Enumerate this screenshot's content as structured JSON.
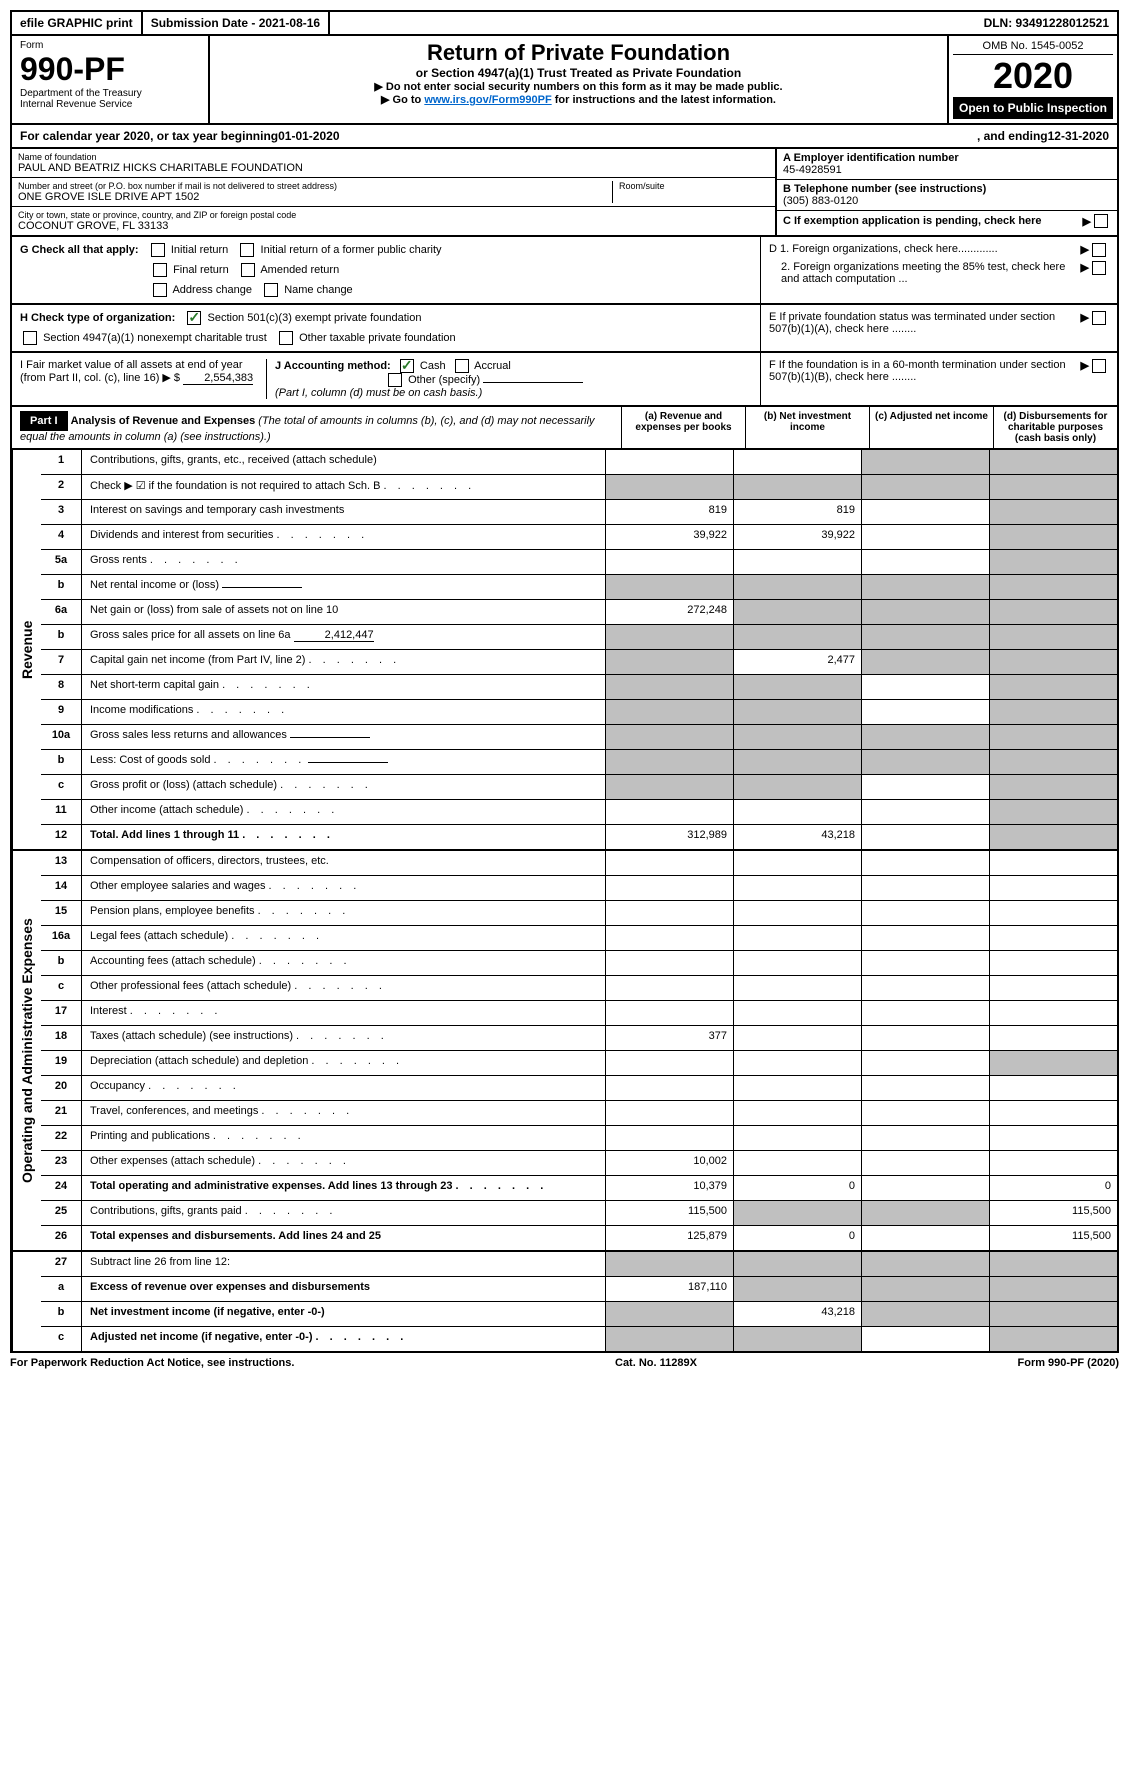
{
  "topbar": {
    "efile": "efile GRAPHIC print",
    "submission": "Submission Date - 2021-08-16",
    "dln": "DLN: 93491228012521"
  },
  "header": {
    "form_label": "Form",
    "form_number": "990-PF",
    "dept": "Department of the Treasury",
    "irs": "Internal Revenue Service",
    "title": "Return of Private Foundation",
    "subtitle": "or Section 4947(a)(1) Trust Treated as Private Foundation",
    "note1": "▶ Do not enter social security numbers on this form as it may be made public.",
    "note2_pre": "▶ Go to ",
    "note2_link": "www.irs.gov/Form990PF",
    "note2_post": " for instructions and the latest information.",
    "omb": "OMB No. 1545-0052",
    "year": "2020",
    "open": "Open to Public Inspection"
  },
  "calendar": {
    "pre": "For calendar year 2020, or tax year beginning ",
    "begin": "01-01-2020",
    "mid": ", and ending ",
    "end": "12-31-2020"
  },
  "entity": {
    "name_label": "Name of foundation",
    "name": "PAUL AND BEATRIZ HICKS CHARITABLE FOUNDATION",
    "addr_label": "Number and street (or P.O. box number if mail is not delivered to street address)",
    "addr": "ONE GROVE ISLE DRIVE APT 1502",
    "room_label": "Room/suite",
    "city_label": "City or town, state or province, country, and ZIP or foreign postal code",
    "city": "COCONUT GROVE, FL  33133",
    "ein_label": "A Employer identification number",
    "ein": "45-4928591",
    "phone_label": "B Telephone number (see instructions)",
    "phone": "(305) 883-0120",
    "c_label": "C If exemption application is pending, check here",
    "d1": "D 1. Foreign organizations, check here.............",
    "d2": "2. Foreign organizations meeting the 85% test, check here and attach computation ...",
    "e": "E  If private foundation status was terminated under section 507(b)(1)(A), check here ........",
    "f": "F  If the foundation is in a 60-month termination under section 507(b)(1)(B), check here ........"
  },
  "checkG": {
    "label": "G Check all that apply:",
    "initial": "Initial return",
    "initial_former": "Initial return of a former public charity",
    "final": "Final return",
    "amended": "Amended return",
    "address": "Address change",
    "name_change": "Name change"
  },
  "checkH": {
    "label": "H Check type of organization:",
    "s501": "Section 501(c)(3) exempt private foundation",
    "s4947": "Section 4947(a)(1) nonexempt charitable trust",
    "other_tax": "Other taxable private foundation"
  },
  "sectionI": {
    "label": "I Fair market value of all assets at end of year (from Part II, col. (c), line 16) ▶ $",
    "value": "2,554,383"
  },
  "sectionJ": {
    "label": "J Accounting method:",
    "cash": "Cash",
    "accrual": "Accrual",
    "other": "Other (specify)",
    "note": "(Part I, column (d) must be on cash basis.)"
  },
  "part1": {
    "header": "Part I",
    "title": "Analysis of Revenue and Expenses",
    "title_note": "(The total of amounts in columns (b), (c), and (d) may not necessarily equal the amounts in column (a) (see instructions).)",
    "col_a": "(a)   Revenue and expenses per books",
    "col_b": "(b)  Net investment income",
    "col_c": "(c)  Adjusted net income",
    "col_d": "(d)  Disbursements for charitable purposes (cash basis only)"
  },
  "sideLabels": {
    "revenue": "Revenue",
    "expenses": "Operating and Administrative Expenses"
  },
  "rows": [
    {
      "n": "1",
      "d": "Contributions, gifts, grants, etc., received (attach schedule)",
      "a": "",
      "b": "",
      "c": "shaded",
      "dd": "shaded"
    },
    {
      "n": "2",
      "d": "Check ▶ ☑ if the foundation is not required to attach Sch. B",
      "a": "shaded",
      "b": "shaded",
      "c": "shaded",
      "dd": "shaded",
      "dots": true
    },
    {
      "n": "3",
      "d": "Interest on savings and temporary cash investments",
      "a": "819",
      "b": "819",
      "c": "",
      "dd": "shaded"
    },
    {
      "n": "4",
      "d": "Dividends and interest from securities",
      "a": "39,922",
      "b": "39,922",
      "c": "",
      "dd": "shaded",
      "dots": true
    },
    {
      "n": "5a",
      "d": "Gross rents",
      "a": "",
      "b": "",
      "c": "",
      "dd": "shaded",
      "dots": true
    },
    {
      "n": "b",
      "d": "Net rental income or (loss)",
      "a": "shaded",
      "b": "shaded",
      "c": "shaded",
      "dd": "shaded",
      "inline": true
    },
    {
      "n": "6a",
      "d": "Net gain or (loss) from sale of assets not on line 10",
      "a": "272,248",
      "b": "shaded",
      "c": "shaded",
      "dd": "shaded"
    },
    {
      "n": "b",
      "d": "Gross sales price for all assets on line 6a",
      "a": "shaded",
      "b": "shaded",
      "c": "shaded",
      "dd": "shaded",
      "inline_val": "2,412,447"
    },
    {
      "n": "7",
      "d": "Capital gain net income (from Part IV, line 2)",
      "a": "shaded",
      "b": "2,477",
      "c": "shaded",
      "dd": "shaded",
      "dots": true
    },
    {
      "n": "8",
      "d": "Net short-term capital gain",
      "a": "shaded",
      "b": "shaded",
      "c": "",
      "dd": "shaded",
      "dots": true
    },
    {
      "n": "9",
      "d": "Income modifications",
      "a": "shaded",
      "b": "shaded",
      "c": "",
      "dd": "shaded",
      "dots": true
    },
    {
      "n": "10a",
      "d": "Gross sales less returns and allowances",
      "a": "shaded",
      "b": "shaded",
      "c": "shaded",
      "dd": "shaded",
      "inline": true
    },
    {
      "n": "b",
      "d": "Less: Cost of goods sold",
      "a": "shaded",
      "b": "shaded",
      "c": "shaded",
      "dd": "shaded",
      "inline": true,
      "dots": true
    },
    {
      "n": "c",
      "d": "Gross profit or (loss) (attach schedule)",
      "a": "shaded",
      "b": "shaded",
      "c": "",
      "dd": "shaded",
      "dots": true
    },
    {
      "n": "11",
      "d": "Other income (attach schedule)",
      "a": "",
      "b": "",
      "c": "",
      "dd": "shaded",
      "dots": true
    },
    {
      "n": "12",
      "d": "Total. Add lines 1 through 11",
      "a": "312,989",
      "b": "43,218",
      "c": "",
      "dd": "shaded",
      "bold": true,
      "dots": true
    }
  ],
  "exp_rows": [
    {
      "n": "13",
      "d": "Compensation of officers, directors, trustees, etc.",
      "a": "",
      "b": "",
      "c": "",
      "dd": ""
    },
    {
      "n": "14",
      "d": "Other employee salaries and wages",
      "a": "",
      "b": "",
      "c": "",
      "dd": "",
      "dots": true
    },
    {
      "n": "15",
      "d": "Pension plans, employee benefits",
      "a": "",
      "b": "",
      "c": "",
      "dd": "",
      "dots": true
    },
    {
      "n": "16a",
      "d": "Legal fees (attach schedule)",
      "a": "",
      "b": "",
      "c": "",
      "dd": "",
      "dots": true
    },
    {
      "n": "b",
      "d": "Accounting fees (attach schedule)",
      "a": "",
      "b": "",
      "c": "",
      "dd": "",
      "dots": true
    },
    {
      "n": "c",
      "d": "Other professional fees (attach schedule)",
      "a": "",
      "b": "",
      "c": "",
      "dd": "",
      "dots": true
    },
    {
      "n": "17",
      "d": "Interest",
      "a": "",
      "b": "",
      "c": "",
      "dd": "",
      "dots": true
    },
    {
      "n": "18",
      "d": "Taxes (attach schedule) (see instructions)",
      "a": "377",
      "b": "",
      "c": "",
      "dd": "",
      "dots": true
    },
    {
      "n": "19",
      "d": "Depreciation (attach schedule) and depletion",
      "a": "",
      "b": "",
      "c": "",
      "dd": "shaded",
      "dots": true
    },
    {
      "n": "20",
      "d": "Occupancy",
      "a": "",
      "b": "",
      "c": "",
      "dd": "",
      "dots": true
    },
    {
      "n": "21",
      "d": "Travel, conferences, and meetings",
      "a": "",
      "b": "",
      "c": "",
      "dd": "",
      "dots": true
    },
    {
      "n": "22",
      "d": "Printing and publications",
      "a": "",
      "b": "",
      "c": "",
      "dd": "",
      "dots": true
    },
    {
      "n": "23",
      "d": "Other expenses (attach schedule)",
      "a": "10,002",
      "b": "",
      "c": "",
      "dd": "",
      "dots": true
    },
    {
      "n": "24",
      "d": "Total operating and administrative expenses. Add lines 13 through 23",
      "a": "10,379",
      "b": "0",
      "c": "",
      "dd": "0",
      "bold": true,
      "dots": true
    },
    {
      "n": "25",
      "d": "Contributions, gifts, grants paid",
      "a": "115,500",
      "b": "shaded",
      "c": "shaded",
      "dd": "115,500",
      "dots": true
    },
    {
      "n": "26",
      "d": "Total expenses and disbursements. Add lines 24 and 25",
      "a": "125,879",
      "b": "0",
      "c": "",
      "dd": "115,500",
      "bold": true
    }
  ],
  "final_rows": [
    {
      "n": "27",
      "d": "Subtract line 26 from line 12:",
      "a": "shaded",
      "b": "shaded",
      "c": "shaded",
      "dd": "shaded"
    },
    {
      "n": "a",
      "d": "Excess of revenue over expenses and disbursements",
      "a": "187,110",
      "b": "shaded",
      "c": "shaded",
      "dd": "shaded",
      "bold": true
    },
    {
      "n": "b",
      "d": "Net investment income (if negative, enter -0-)",
      "a": "shaded",
      "b": "43,218",
      "c": "shaded",
      "dd": "shaded",
      "bold": true
    },
    {
      "n": "c",
      "d": "Adjusted net income (if negative, enter -0-)",
      "a": "shaded",
      "b": "shaded",
      "c": "",
      "dd": "shaded",
      "bold": true,
      "dots": true
    }
  ],
  "footer": {
    "left": "For Paperwork Reduction Act Notice, see instructions.",
    "center": "Cat. No. 11289X",
    "right": "Form 990-PF (2020)"
  }
}
